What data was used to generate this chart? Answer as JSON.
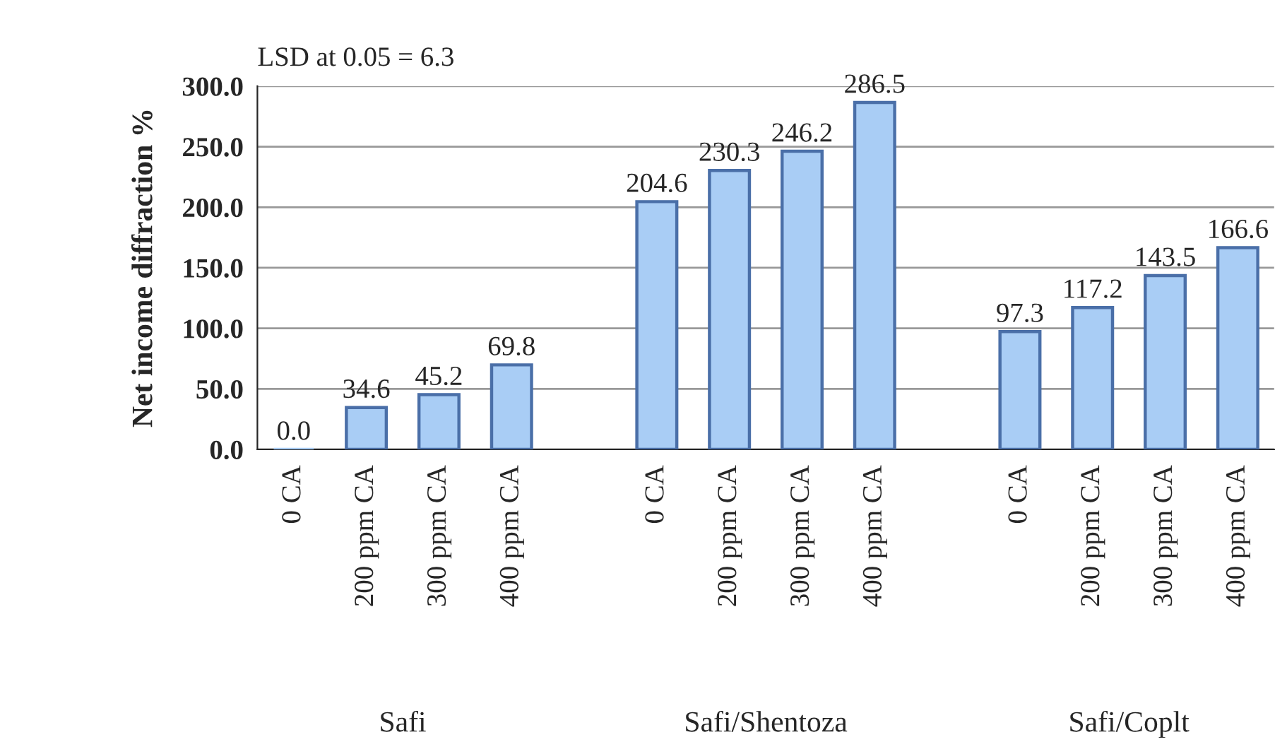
{
  "chart_data": {
    "type": "bar",
    "ylabel": "Net income diffraction %",
    "categories": [
      "0 CA",
      "200 ppm CA",
      "300 ppm CA",
      "400 ppm CA",
      null,
      "0 CA",
      "200 ppm CA",
      "300 ppm CA",
      "400 ppm CA",
      null,
      "0 CA",
      "200 ppm CA",
      "300 ppm CA",
      "400 ppm CA"
    ],
    "values": [
      0.0,
      34.6,
      45.2,
      69.8,
      null,
      204.6,
      230.3,
      246.2,
      286.5,
      null,
      97.3,
      117.2,
      143.5,
      166.6
    ],
    "value_labels": [
      "0.0",
      "34.6",
      "45.2",
      "69.8",
      null,
      "204.6",
      "230.3",
      "246.2",
      "286.5",
      null,
      "97.3",
      "117.2",
      "143.5",
      "166.6"
    ],
    "color": "#a9cdf5",
    "ylim": [
      0,
      300
    ],
    "yticks": [
      {
        "value": 0,
        "label": "0.0"
      },
      {
        "value": 50,
        "label": "50.0"
      },
      {
        "value": 100,
        "label": "100.0"
      },
      {
        "value": 150,
        "label": "150.0"
      },
      {
        "value": 200,
        "label": "200.0"
      },
      {
        "value": 250,
        "label": "250.0"
      },
      {
        "value": 300,
        "label": "300.0"
      }
    ],
    "grid": "y",
    "annotations": [
      "LSD at 0.05 = 6.3",
      "Safi",
      "Safi/Shentoza",
      "Safi/Coplt"
    ]
  }
}
